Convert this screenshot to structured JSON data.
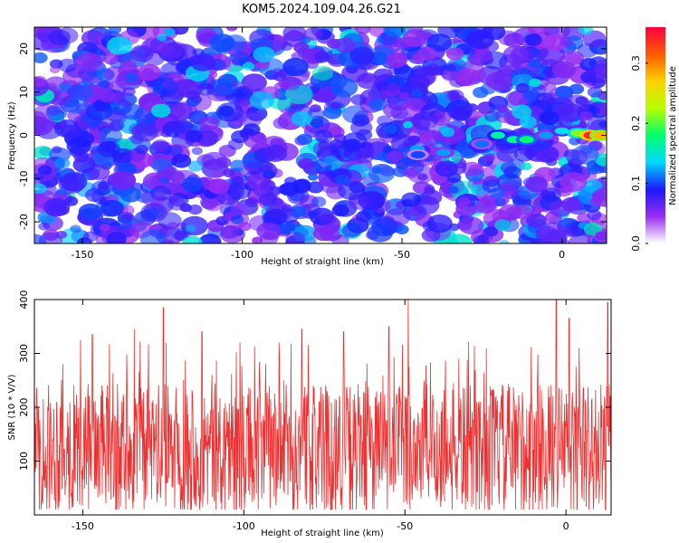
{
  "title": "KOM5.2024.109.04.26.G21",
  "chart_data": [
    {
      "type": "heatmap",
      "name": "spectrogram",
      "xlabel": "Height of straight line (km)",
      "ylabel": "Frequency (Hz)",
      "xlim": [
        -165,
        14
      ],
      "ylim": [
        -25,
        25
      ],
      "xticks": [
        -150,
        -100,
        -50,
        0
      ],
      "yticks": [
        -20,
        -10,
        0,
        10,
        20
      ],
      "colorbar": {
        "label": "Normalized spectral amplitude",
        "range": [
          0.0,
          0.36
        ],
        "ticks": [
          0.0,
          0.1,
          0.2,
          0.3
        ],
        "colormap": [
          "#ffffff",
          "#9a2cf0",
          "#1a1aff",
          "#00d8ff",
          "#00ff6a",
          "#b8ff00",
          "#ffd000",
          "#ff5a00",
          "#ff0040"
        ]
      },
      "ridge": [
        {
          "x": -45,
          "y": -4.5,
          "value": 0.1
        },
        {
          "x": -37,
          "y": -4,
          "value": 0.12
        },
        {
          "x": -25,
          "y": -2,
          "value": 0.11
        },
        {
          "x": -20,
          "y": 0,
          "value": 0.16
        },
        {
          "x": -15,
          "y": -1,
          "value": 0.17
        },
        {
          "x": -11,
          "y": -1,
          "value": 0.18
        },
        {
          "x": -5,
          "y": 0,
          "value": 0.12
        },
        {
          "x": 0,
          "y": 1,
          "value": 0.14
        },
        {
          "x": 5,
          "y": 0.5,
          "value": 0.21
        },
        {
          "x": 9,
          "y": 0,
          "value": 0.34
        },
        {
          "x": 12,
          "y": 0,
          "value": 0.28
        }
      ]
    },
    {
      "type": "line",
      "name": "snr",
      "xlabel": "Height of straight line (km)",
      "ylabel": "SNR (10 * V/V)",
      "xlim": [
        -165,
        14
      ],
      "ylim": [
        0,
        400
      ],
      "xticks": [
        -150,
        -100,
        -50,
        0
      ],
      "yticks": [
        100,
        200,
        300,
        400
      ],
      "color": "#f03030",
      "mean": 125,
      "range": [
        10,
        400
      ],
      "peaks": [
        {
          "x": -147,
          "y": 335
        },
        {
          "x": -134,
          "y": 345
        },
        {
          "x": -125,
          "y": 385
        },
        {
          "x": -113,
          "y": 340
        },
        {
          "x": -82,
          "y": 345
        },
        {
          "x": -69,
          "y": 340
        },
        {
          "x": -55,
          "y": 350
        },
        {
          "x": -49,
          "y": 400
        },
        {
          "x": -3,
          "y": 400
        },
        {
          "x": 1,
          "y": 365
        },
        {
          "x": 13,
          "y": 395
        }
      ]
    }
  ]
}
